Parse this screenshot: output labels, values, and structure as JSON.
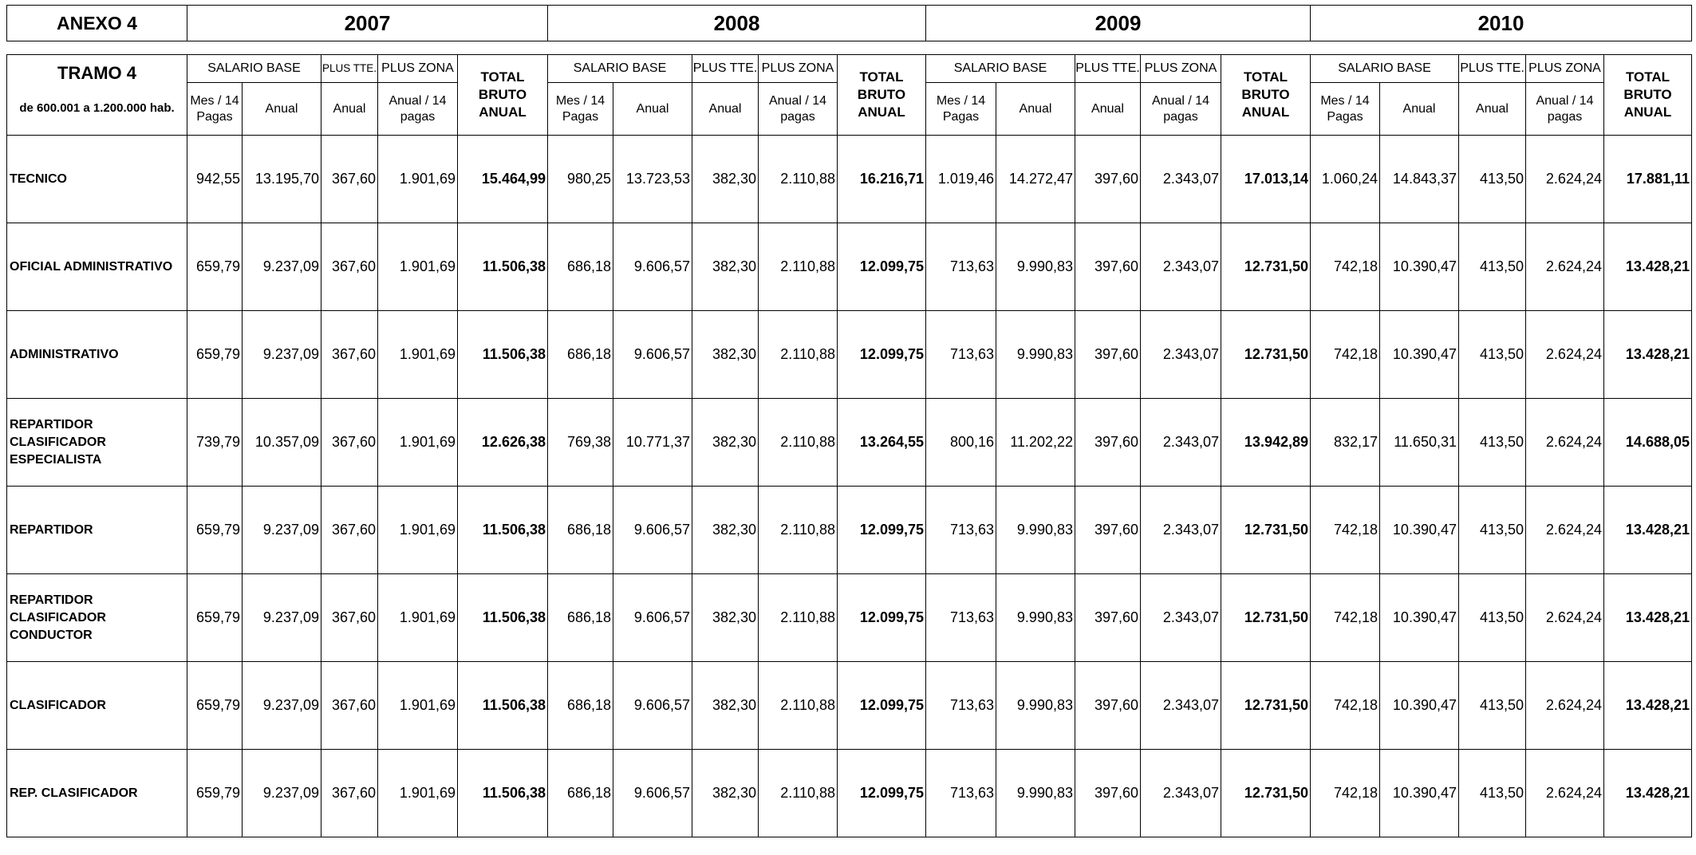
{
  "header": {
    "anexo": "ANEXO 4",
    "years": [
      "2007",
      "2008",
      "2009",
      "2010"
    ]
  },
  "subheader": {
    "tramo": "TRAMO 4",
    "tramo_range": "de 600.001 a 1.200.000 hab.",
    "salario_base": "SALARIO BASE",
    "plus_tte": "PLUS TTE.",
    "plus_zona": "PLUS ZONA",
    "total_bruto_anual": "TOTAL BRUTO ANUAL",
    "mes_14_pagas": "Mes / 14 Pagas",
    "anual": "Anual",
    "anual_14_pagas": "Anual / 14 pagas"
  },
  "rows": [
    {
      "category": "TECNICO",
      "values": [
        "942,55",
        "13.195,70",
        "367,60",
        "1.901,69",
        "15.464,99",
        "980,25",
        "13.723,53",
        "382,30",
        "2.110,88",
        "16.216,71",
        "1.019,46",
        "14.272,47",
        "397,60",
        "2.343,07",
        "17.013,14",
        "1.060,24",
        "14.843,37",
        "413,50",
        "2.624,24",
        "17.881,11"
      ]
    },
    {
      "category": "OFICIAL ADMINISTRATIVO",
      "values": [
        "659,79",
        "9.237,09",
        "367,60",
        "1.901,69",
        "11.506,38",
        "686,18",
        "9.606,57",
        "382,30",
        "2.110,88",
        "12.099,75",
        "713,63",
        "9.990,83",
        "397,60",
        "2.343,07",
        "12.731,50",
        "742,18",
        "10.390,47",
        "413,50",
        "2.624,24",
        "13.428,21"
      ]
    },
    {
      "category": "ADMINISTRATIVO",
      "values": [
        "659,79",
        "9.237,09",
        "367,60",
        "1.901,69",
        "11.506,38",
        "686,18",
        "9.606,57",
        "382,30",
        "2.110,88",
        "12.099,75",
        "713,63",
        "9.990,83",
        "397,60",
        "2.343,07",
        "12.731,50",
        "742,18",
        "10.390,47",
        "413,50",
        "2.624,24",
        "13.428,21"
      ]
    },
    {
      "category": "REPARTIDOR CLASIFICADOR ESPECIALISTA",
      "values": [
        "739,79",
        "10.357,09",
        "367,60",
        "1.901,69",
        "12.626,38",
        "769,38",
        "10.771,37",
        "382,30",
        "2.110,88",
        "13.264,55",
        "800,16",
        "11.202,22",
        "397,60",
        "2.343,07",
        "13.942,89",
        "832,17",
        "11.650,31",
        "413,50",
        "2.624,24",
        "14.688,05"
      ]
    },
    {
      "category": "REPARTIDOR",
      "values": [
        "659,79",
        "9.237,09",
        "367,60",
        "1.901,69",
        "11.506,38",
        "686,18",
        "9.606,57",
        "382,30",
        "2.110,88",
        "12.099,75",
        "713,63",
        "9.990,83",
        "397,60",
        "2.343,07",
        "12.731,50",
        "742,18",
        "10.390,47",
        "413,50",
        "2.624,24",
        "13.428,21"
      ]
    },
    {
      "category": "REPARTIDOR CLASIFICADOR CONDUCTOR",
      "values": [
        "659,79",
        "9.237,09",
        "367,60",
        "1.901,69",
        "11.506,38",
        "686,18",
        "9.606,57",
        "382,30",
        "2.110,88",
        "12.099,75",
        "713,63",
        "9.990,83",
        "397,60",
        "2.343,07",
        "12.731,50",
        "742,18",
        "10.390,47",
        "413,50",
        "2.624,24",
        "13.428,21"
      ]
    },
    {
      "category": "CLASIFICADOR",
      "values": [
        "659,79",
        "9.237,09",
        "367,60",
        "1.901,69",
        "11.506,38",
        "686,18",
        "9.606,57",
        "382,30",
        "2.110,88",
        "12.099,75",
        "713,63",
        "9.990,83",
        "397,60",
        "2.343,07",
        "12.731,50",
        "742,18",
        "10.390,47",
        "413,50",
        "2.624,24",
        "13.428,21"
      ]
    },
    {
      "category": "REP. CLASIFICADOR",
      "values": [
        "659,79",
        "9.237,09",
        "367,60",
        "1.901,69",
        "11.506,38",
        "686,18",
        "9.606,57",
        "382,30",
        "2.110,88",
        "12.099,75",
        "713,63",
        "9.990,83",
        "397,60",
        "2.343,07",
        "12.731,50",
        "742,18",
        "10.390,47",
        "413,50",
        "2.624,24",
        "13.428,21"
      ]
    }
  ]
}
